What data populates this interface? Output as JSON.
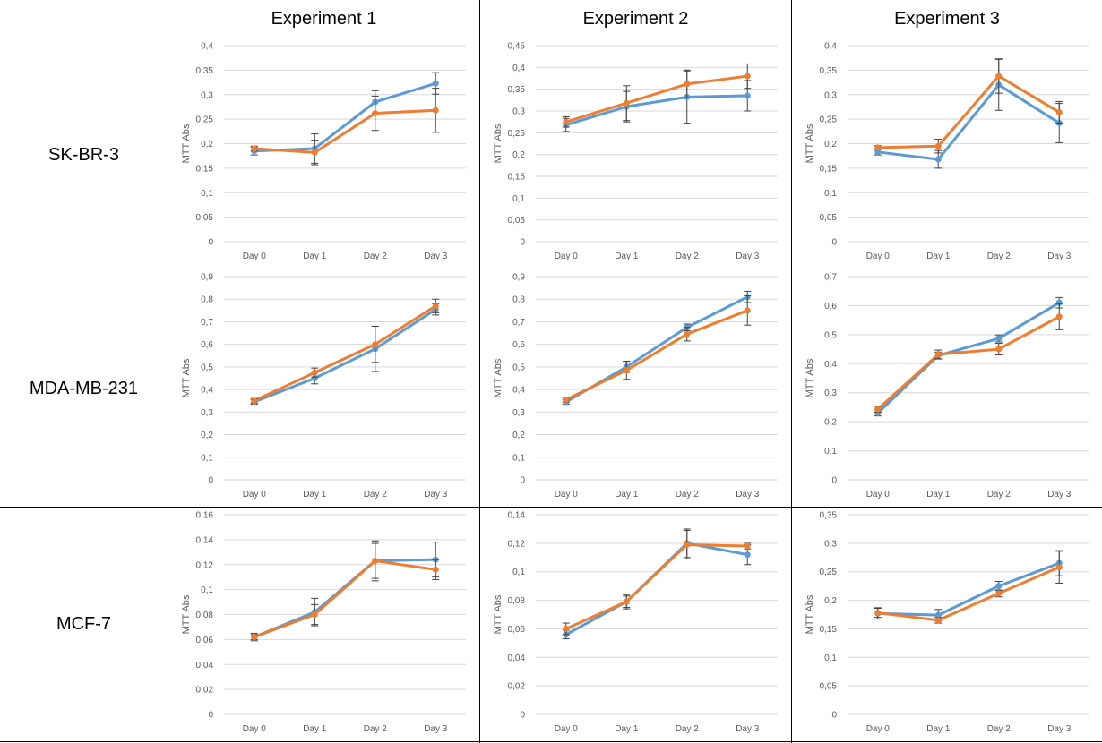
{
  "table": {
    "columns": [
      "Experiment 1",
      "Experiment 2",
      "Experiment 3"
    ],
    "rows": [
      "SK-BR-3",
      "MDA-MB-231",
      "MCF-7"
    ]
  },
  "colors": {
    "series_a": "#5b9bd5",
    "series_b": "#ed7d31",
    "grid": "#d9d9d9",
    "error_bar": "#404040",
    "tick_text": "#595959"
  },
  "chart_data": [
    {
      "type": "line",
      "row": "SK-BR-3",
      "column": "Experiment 1",
      "xlabel": "",
      "ylabel": "MTT Abs",
      "categories": [
        "Day 0",
        "Day 1",
        "Day 2",
        "Day 3"
      ],
      "yticks": [
        "0",
        "0,05",
        "0,1",
        "0,15",
        "0,2",
        "0,25",
        "0,3",
        "0,35",
        "0,4"
      ],
      "ylim": [
        0,
        0.4
      ],
      "series": [
        {
          "values": [
            0.185,
            0.19,
            0.285,
            0.323
          ],
          "errors": [
            0.008,
            0.03,
            0.023,
            0.022
          ],
          "color": "#5b9bd5"
        },
        {
          "values": [
            0.19,
            0.182,
            0.262,
            0.268
          ],
          "errors": [
            0.005,
            0.025,
            0.035,
            0.045
          ],
          "color": "#ed7d31"
        }
      ]
    },
    {
      "type": "line",
      "row": "SK-BR-3",
      "column": "Experiment 2",
      "xlabel": "",
      "ylabel": "MTT Abs",
      "categories": [
        "Day 0",
        "Day 1",
        "Day 2",
        "Day 3"
      ],
      "yticks": [
        "0",
        "0,05",
        "0,1",
        "0,15",
        "0,2",
        "0,25",
        "0,3",
        "0,35",
        "0,4",
        "0,45"
      ],
      "ylim": [
        0,
        0.45
      ],
      "series": [
        {
          "values": [
            0.268,
            0.31,
            0.332,
            0.335
          ],
          "errors": [
            0.015,
            0.035,
            0.06,
            0.035
          ],
          "color": "#5b9bd5"
        },
        {
          "values": [
            0.275,
            0.318,
            0.362,
            0.38
          ],
          "errors": [
            0.012,
            0.04,
            0.032,
            0.028
          ],
          "color": "#ed7d31"
        }
      ]
    },
    {
      "type": "line",
      "row": "SK-BR-3",
      "column": "Experiment 3",
      "xlabel": "",
      "ylabel": "MTT Abs",
      "categories": [
        "Day 0",
        "Day 1",
        "Day 2",
        "Day 3"
      ],
      "yticks": [
        "0",
        "0,05",
        "0,1",
        "0,15",
        "0,2",
        "0,25",
        "0,3",
        "0,35",
        "0,4"
      ],
      "ylim": [
        0,
        0.4
      ],
      "series": [
        {
          "values": [
            0.183,
            0.168,
            0.32,
            0.242
          ],
          "errors": [
            0.006,
            0.018,
            0.052,
            0.04
          ],
          "color": "#5b9bd5"
        },
        {
          "values": [
            0.192,
            0.195,
            0.338,
            0.264
          ],
          "errors": [
            0.004,
            0.014,
            0.035,
            0.022
          ],
          "color": "#ed7d31"
        }
      ]
    },
    {
      "type": "line",
      "row": "MDA-MB-231",
      "column": "Experiment 1",
      "xlabel": "",
      "ylabel": "MTT Abs",
      "categories": [
        "Day 0",
        "Day 1",
        "Day 2",
        "Day 3"
      ],
      "yticks": [
        "0",
        "0,1",
        "0,2",
        "0,3",
        "0,4",
        "0,5",
        "0,6",
        "0,7",
        "0,8",
        "0,9"
      ],
      "ylim": [
        0,
        0.9
      ],
      "series": [
        {
          "values": [
            0.345,
            0.45,
            0.58,
            0.755
          ],
          "errors": [
            0.01,
            0.025,
            0.1,
            0.025
          ],
          "color": "#5b9bd5"
        },
        {
          "values": [
            0.35,
            0.475,
            0.6,
            0.77
          ],
          "errors": [
            0.01,
            0.02,
            0.08,
            0.03
          ],
          "color": "#ed7d31"
        }
      ]
    },
    {
      "type": "line",
      "row": "MDA-MB-231",
      "column": "Experiment 2",
      "xlabel": "",
      "ylabel": "MTT Abs",
      "categories": [
        "Day 0",
        "Day 1",
        "Day 2",
        "Day 3"
      ],
      "yticks": [
        "0",
        "0,1",
        "0,2",
        "0,3",
        "0,4",
        "0,5",
        "0,6",
        "0,7",
        "0,8",
        "0,9"
      ],
      "ylim": [
        0,
        0.9
      ],
      "series": [
        {
          "values": [
            0.345,
            0.5,
            0.675,
            0.81
          ],
          "errors": [
            0.01,
            0.025,
            0.015,
            0.025
          ],
          "color": "#5b9bd5"
        },
        {
          "values": [
            0.355,
            0.485,
            0.645,
            0.75
          ],
          "errors": [
            0.01,
            0.04,
            0.03,
            0.065
          ],
          "color": "#ed7d31"
        }
      ]
    },
    {
      "type": "line",
      "row": "MDA-MB-231",
      "column": "Experiment 3",
      "xlabel": "",
      "ylabel": "MTT Abs",
      "categories": [
        "Day 0",
        "Day 1",
        "Day 2",
        "Day 3"
      ],
      "yticks": [
        "0",
        "0,1",
        "0,2",
        "0,3",
        "0,4",
        "0,5",
        "0,6",
        "0,7"
      ],
      "ylim": [
        0,
        0.7
      ],
      "series": [
        {
          "values": [
            0.23,
            0.428,
            0.487,
            0.61
          ],
          "errors": [
            0.01,
            0.012,
            0.012,
            0.018
          ],
          "color": "#5b9bd5"
        },
        {
          "values": [
            0.243,
            0.432,
            0.45,
            0.562
          ],
          "errors": [
            0.01,
            0.015,
            0.02,
            0.045
          ],
          "color": "#ed7d31"
        }
      ]
    },
    {
      "type": "line",
      "row": "MCF-7",
      "column": "Experiment 1",
      "xlabel": "",
      "ylabel": "MTT Abs",
      "categories": [
        "Day 0",
        "Day 1",
        "Day 2",
        "Day 3"
      ],
      "yticks": [
        "0",
        "0,02",
        "0,04",
        "0,06",
        "0,08",
        "0,1",
        "0,12",
        "0,14",
        "0,16"
      ],
      "ylim": [
        0,
        0.16
      ],
      "series": [
        {
          "values": [
            0.062,
            0.082,
            0.123,
            0.124
          ],
          "errors": [
            0.003,
            0.011,
            0.016,
            0.014
          ],
          "color": "#5b9bd5"
        },
        {
          "values": [
            0.062,
            0.08,
            0.123,
            0.116
          ],
          "errors": [
            0.002,
            0.008,
            0.014,
            0.008
          ],
          "color": "#ed7d31"
        }
      ]
    },
    {
      "type": "line",
      "row": "MCF-7",
      "column": "Experiment 2",
      "xlabel": "",
      "ylabel": "MTT Abs",
      "categories": [
        "Day 0",
        "Day 1",
        "Day 2",
        "Day 3"
      ],
      "yticks": [
        "0",
        "0,02",
        "0,04",
        "0,06",
        "0,08",
        "0,1",
        "0,12",
        "0,14"
      ],
      "ylim": [
        0,
        0.14
      ],
      "series": [
        {
          "values": [
            0.056,
            0.079,
            0.12,
            0.112
          ],
          "errors": [
            0.003,
            0.004,
            0.01,
            0.007
          ],
          "color": "#5b9bd5"
        },
        {
          "values": [
            0.06,
            0.079,
            0.119,
            0.118
          ],
          "errors": [
            0.004,
            0.005,
            0.01,
            0.002
          ],
          "color": "#ed7d31"
        }
      ]
    },
    {
      "type": "line",
      "row": "MCF-7",
      "column": "Experiment 3",
      "xlabel": "",
      "ylabel": "MTT Abs",
      "categories": [
        "Day 0",
        "Day 1",
        "Day 2",
        "Day 3"
      ],
      "yticks": [
        "0",
        "0,05",
        "0,1",
        "0,15",
        "0,2",
        "0,25",
        "0,3",
        "0,35"
      ],
      "ylim": [
        0,
        0.35
      ],
      "series": [
        {
          "values": [
            0.177,
            0.174,
            0.225,
            0.265
          ],
          "errors": [
            0.01,
            0.01,
            0.008,
            0.022
          ],
          "color": "#5b9bd5"
        },
        {
          "values": [
            0.178,
            0.165,
            0.212,
            0.258
          ],
          "errors": [
            0.008,
            0.005,
            0.006,
            0.028
          ],
          "color": "#ed7d31"
        }
      ]
    }
  ]
}
